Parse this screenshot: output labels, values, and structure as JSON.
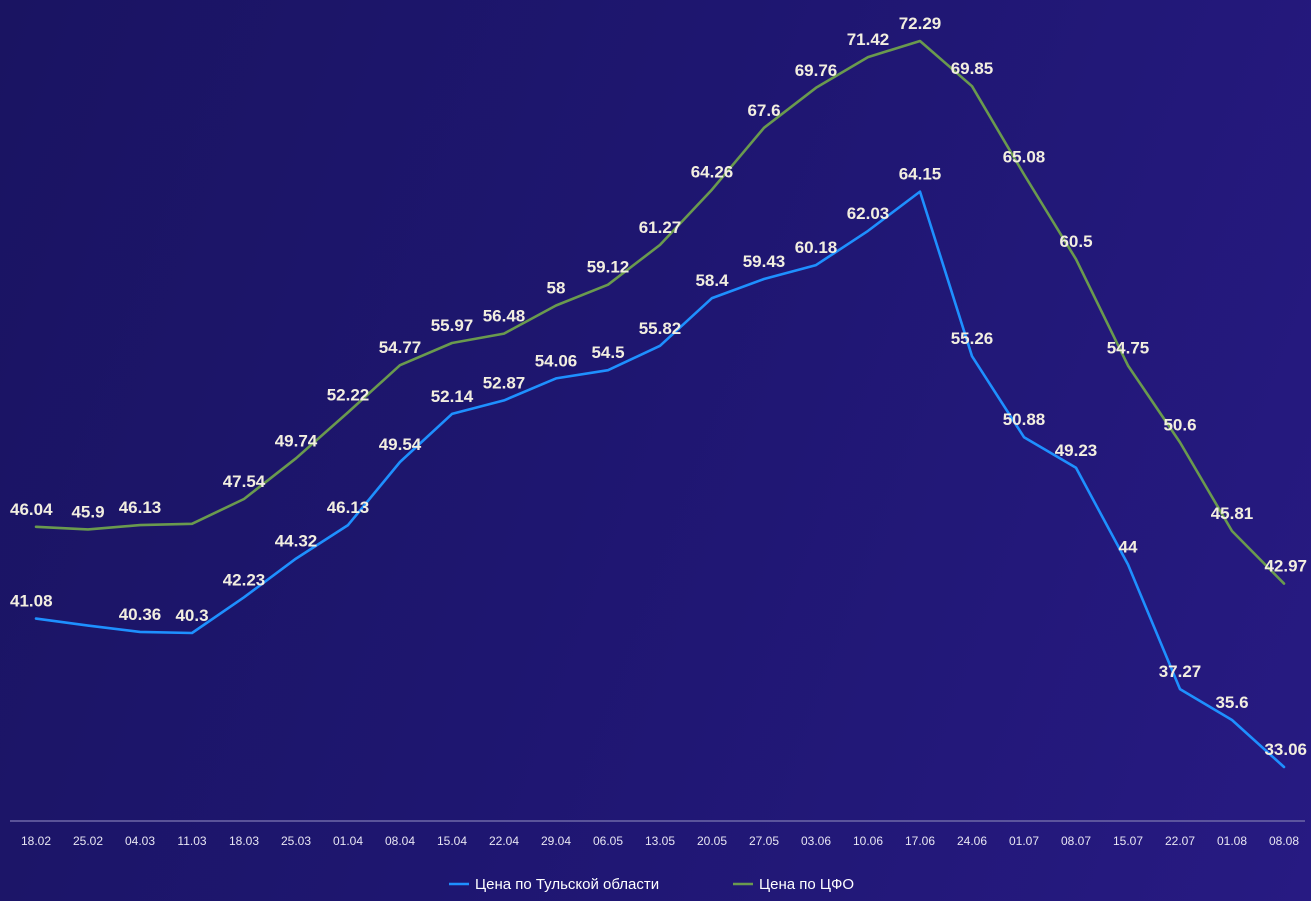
{
  "chart_data": {
    "type": "line",
    "x": [
      "18.02",
      "25.02",
      "04.03",
      "11.03",
      "18.03",
      "25.03",
      "01.04",
      "08.04",
      "15.04",
      "22.04",
      "29.04",
      "06.05",
      "13.05",
      "20.05",
      "27.05",
      "03.06",
      "10.06",
      "17.06",
      "24.06",
      "01.07",
      "08.07",
      "15.07",
      "22.07",
      "01.08",
      "08.08"
    ],
    "series": [
      {
        "name": "Цена по Тульской области",
        "color": "#1e90ff",
        "values": [
          41.08,
          40.7,
          40.36,
          40.3,
          42.23,
          44.32,
          46.13,
          49.54,
          52.14,
          52.87,
          54.06,
          54.5,
          55.82,
          58.4,
          59.43,
          60.18,
          62.03,
          64.15,
          55.26,
          50.88,
          49.23,
          44,
          37.27,
          35.6,
          33.06
        ],
        "labels": [
          "41.08",
          "",
          "40.36",
          "40.3",
          "42.23",
          "44.32",
          "46.13",
          "49.54",
          "52.14",
          "52.87",
          "54.06",
          "54.5",
          "55.82",
          "58.4",
          "59.43",
          "60.18",
          "62.03",
          "64.15",
          "55.26",
          "50.88",
          "49.23",
          "44",
          "37.27",
          "35.6",
          "33.06"
        ]
      },
      {
        "name": "Цена по ЦФО",
        "color": "#6a9a4e",
        "values": [
          46.04,
          45.9,
          46.13,
          46.2,
          47.54,
          49.74,
          52.22,
          54.77,
          55.97,
          56.48,
          58,
          59.12,
          61.27,
          64.26,
          67.6,
          69.76,
          71.42,
          72.29,
          69.85,
          65.08,
          60.5,
          54.75,
          50.6,
          45.81,
          42.97
        ],
        "labels": [
          "46.04",
          "45.9",
          "46.13",
          "",
          "47.54",
          "49.74",
          "52.22",
          "54.77",
          "55.97",
          "56.48",
          "58",
          "59.12",
          "61.27",
          "64.26",
          "67.6",
          "69.76",
          "71.42",
          "72.29",
          "69.85",
          "65.08",
          "60.5",
          "54.75",
          "50.6",
          "45.81",
          "42.97"
        ]
      }
    ],
    "xlabel": "",
    "ylabel": "",
    "ylim": [
      28,
      76
    ],
    "grid": false,
    "legend_position": "bottom-center",
    "axis_color": "#6e68a8"
  }
}
